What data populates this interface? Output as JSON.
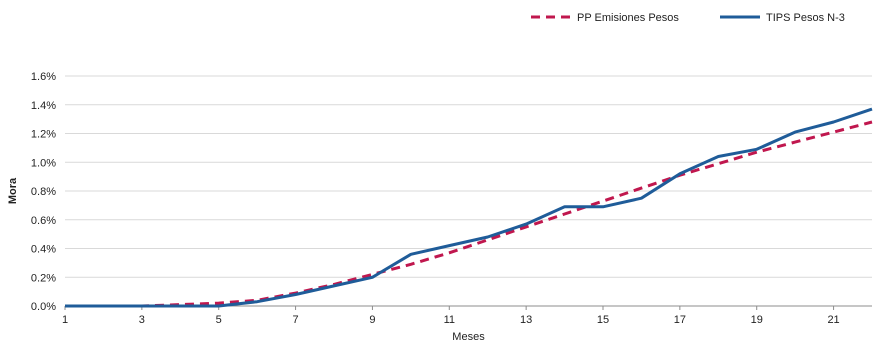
{
  "chart_data": {
    "type": "line",
    "title": "",
    "xlabel": "Meses",
    "ylabel": "Mora",
    "x": [
      1,
      2,
      3,
      4,
      5,
      6,
      7,
      8,
      9,
      10,
      11,
      12,
      13,
      14,
      15,
      16,
      17,
      18,
      19,
      20,
      21,
      22
    ],
    "x_tick_labels": [
      "1",
      "3",
      "5",
      "7",
      "9",
      "11",
      "13",
      "15",
      "17",
      "19",
      "21"
    ],
    "y_tick_labels": [
      "0.0%",
      "0.2%",
      "0.4%",
      "0.6%",
      "0.8%",
      "1.0%",
      "1.2%",
      "1.4%",
      "1.6%"
    ],
    "xlim": [
      1,
      22
    ],
    "ylim": [
      0,
      1.6
    ],
    "grid": "horizontal",
    "legend_position": "top-right",
    "series": [
      {
        "name": "PP Emisiones Pesos",
        "style": "dashed",
        "color": "#C0174E",
        "values": [
          0.0,
          0.0,
          0.0,
          0.01,
          0.02,
          0.04,
          0.09,
          0.15,
          0.22,
          0.29,
          0.37,
          0.46,
          0.55,
          0.64,
          0.73,
          0.82,
          0.91,
          0.99,
          1.07,
          1.14,
          1.21,
          1.28
        ]
      },
      {
        "name": "TIPS Pesos N-3",
        "style": "solid",
        "color": "#1F5C99",
        "values": [
          0.0,
          0.0,
          0.0,
          0.0,
          0.0,
          0.03,
          0.08,
          0.14,
          0.2,
          0.36,
          0.42,
          0.48,
          0.57,
          0.69,
          0.69,
          0.75,
          0.92,
          1.04,
          1.09,
          1.21,
          1.28,
          1.37
        ]
      }
    ]
  }
}
